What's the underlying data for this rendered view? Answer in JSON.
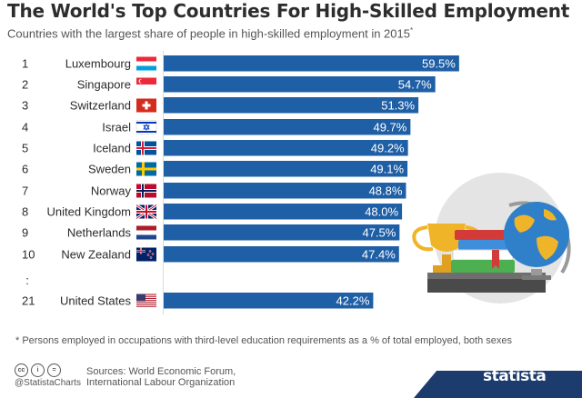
{
  "header": {
    "title": "The World's Top Countries For High-Skilled Employment",
    "subtitle": "Countries with the largest share of people in high-skilled employment in 2015",
    "subtitle_marker": "*"
  },
  "chart_data": {
    "type": "bar",
    "orientation": "horizontal",
    "title": "The World's Top Countries For High-Skilled Employment",
    "subtitle": "Countries with the largest share of people in high-skilled employment in 2015*",
    "categories": [
      "Luxembourg",
      "Singapore",
      "Switzerland",
      "Israel",
      "Iceland",
      "Sweden",
      "Norway",
      "United Kingdom",
      "Netherlands",
      "New Zealand",
      "United States"
    ],
    "ranks": [
      "1",
      "2",
      "3",
      "4",
      "5",
      "6",
      "7",
      "8",
      "9",
      "10",
      "21"
    ],
    "values": [
      59.5,
      54.7,
      51.3,
      49.7,
      49.2,
      49.1,
      48.8,
      48.0,
      47.5,
      47.4,
      42.2
    ],
    "value_labels": [
      "59.5%",
      "54.7%",
      "51.3%",
      "49.7%",
      "49.2%",
      "49.1%",
      "48.8%",
      "48.0%",
      "47.5%",
      "47.4%",
      "42.2%"
    ],
    "gap_marker": ":",
    "unit": "%",
    "xlim": [
      0,
      70
    ],
    "bar_color": "#1f5fa6",
    "grid": false,
    "legend": "none"
  },
  "flags": [
    "luxembourg-flag-icon",
    "singapore-flag-icon",
    "switzerland-flag-icon",
    "israel-flag-icon",
    "iceland-flag-icon",
    "sweden-flag-icon",
    "norway-flag-icon",
    "united-kingdom-flag-icon",
    "netherlands-flag-icon",
    "new-zealand-flag-icon",
    "united-states-flag-icon"
  ],
  "illustration": "trophy-books-globe-illustration",
  "footer": {
    "footnote": "* Persons employed in occupations with third-level education requirements as a % of total employed, both sexes",
    "cc_icons": [
      "cc-icon",
      "by-icon",
      "nd-icon"
    ],
    "cc_symbols": [
      "cc",
      "i",
      "="
    ],
    "handle": "@StatistaCharts",
    "sources_line1": "Sources: World Economic Forum,",
    "sources_line2": "International Labour Organization",
    "brand": "statista",
    "brand_color": "#1d3c6e"
  }
}
